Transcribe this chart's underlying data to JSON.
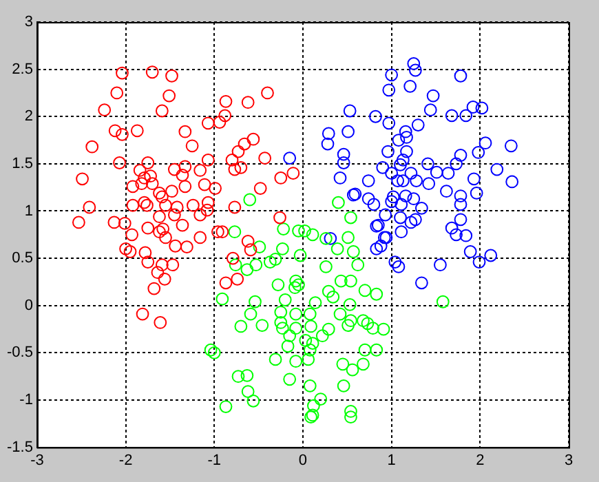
{
  "chart_data": {
    "type": "scatter",
    "xlim": [
      -3,
      3
    ],
    "ylim": [
      -1.5,
      3
    ],
    "xticks": [
      -3,
      -2,
      -1,
      0,
      1,
      2,
      3
    ],
    "yticks": [
      -1.5,
      -1,
      -0.5,
      0,
      0.5,
      1,
      1.5,
      2,
      2.5,
      3
    ],
    "grid": true,
    "legend": false,
    "marker": "circle",
    "series": [
      {
        "color": "#ff0000",
        "x": [
          -2.04,
          -1.7,
          -1.48,
          -2.1,
          -1.51,
          -2.24,
          -1.59,
          -0.4,
          -0.87,
          -0.62,
          -0.88,
          -1.07,
          -0.94,
          -2.12,
          -2.04,
          -1.87,
          -1.33,
          -2.38,
          -1.25,
          -0.56,
          -0.66,
          -0.73,
          -0.43,
          -0.8,
          -1.07,
          -2.07,
          -1.75,
          -1.84,
          -1.45,
          -1.33,
          -1.16,
          -0.77,
          -0.7,
          -1.72,
          -1.79,
          -1.36,
          -1.92,
          -1.82,
          -1.7,
          -1.33,
          -1.11,
          -0.99,
          -0.25,
          -0.11,
          -0.48,
          -1.62,
          -1.48,
          -1.59,
          -1.79,
          -1.92,
          -1.76,
          -1.55,
          -1.42,
          -1.24,
          -1.07,
          -1.08,
          -0.77,
          -2.41,
          -2.53,
          -2.13,
          -2.01,
          -1.62,
          -1.45,
          -1.16,
          -0.26,
          -1.93,
          -1.62,
          -1.36,
          -1.16,
          -0.91,
          -1.55,
          -1.75,
          -1.58,
          -1.44,
          -1.31,
          -1.78,
          -1.75,
          -1.59,
          -1.47,
          -1.64,
          -1.56,
          -1.68,
          -1.81,
          -1.61,
          -0.96,
          -0.62,
          -0.59,
          -0.79,
          -0.74,
          -0.87,
          -2.49,
          -2.0,
          -1.95
        ],
        "values": [
          2.46,
          2.47,
          2.43,
          2.25,
          2.22,
          2.07,
          2.06,
          2.25,
          2.16,
          2.15,
          2.01,
          1.93,
          1.94,
          1.85,
          1.81,
          1.85,
          1.84,
          1.68,
          1.69,
          1.76,
          1.71,
          1.63,
          1.56,
          1.54,
          1.54,
          1.51,
          1.51,
          1.43,
          1.44,
          1.47,
          1.43,
          1.44,
          1.46,
          1.37,
          1.35,
          1.38,
          1.26,
          1.29,
          1.29,
          1.26,
          1.28,
          1.24,
          1.35,
          1.4,
          1.24,
          1.19,
          1.21,
          1.15,
          1.09,
          1.06,
          1.06,
          1.06,
          1.04,
          1.06,
          1.09,
          1.01,
          1.04,
          1.04,
          0.88,
          0.88,
          0.87,
          0.94,
          0.96,
          0.96,
          0.93,
          0.75,
          0.78,
          0.85,
          0.72,
          0.78,
          0.72,
          0.82,
          0.81,
          0.63,
          0.62,
          0.56,
          0.46,
          0.43,
          0.43,
          0.35,
          0.28,
          0.18,
          -0.09,
          -0.18,
          0.78,
          0.68,
          0.59,
          0.5,
          0.28,
          0.24,
          1.34,
          0.6,
          0.57
        ]
      },
      {
        "color": "#00ff00",
        "x": [
          -0.6,
          0.4,
          0.54,
          -0.77,
          -0.22,
          -0.05,
          0.02,
          0.11,
          0.26,
          0.51,
          0.39,
          0.57,
          -0.49,
          -0.23,
          -0.03,
          -0.76,
          -0.63,
          -0.53,
          -0.37,
          -0.31,
          0.26,
          0.62,
          0.43,
          0.54,
          -0.28,
          -0.08,
          -0.09,
          -0.05,
          0.29,
          0.34,
          0.7,
          0.83,
          -0.91,
          -0.54,
          -0.2,
          0.14,
          0.53,
          -0.59,
          -0.25,
          -0.08,
          0.08,
          0.42,
          0.54,
          0.68,
          -0.7,
          -0.46,
          -0.25,
          -0.23,
          -0.08,
          0.09,
          0.29,
          0.51,
          0.73,
          0.79,
          0.91,
          0.22,
          -0.15,
          0.03,
          0.11,
          -0.17,
          -1.04,
          -1.0,
          0.08,
          0.7,
          0.83,
          -0.31,
          -0.08,
          0.06,
          0.45,
          0.68,
          0.56,
          -0.73,
          -0.63,
          -0.15,
          0.08,
          0.46,
          -0.62,
          -0.56,
          0.2,
          0.12,
          -0.87,
          0.09,
          0.54,
          0.54,
          0.11,
          1.58
        ],
        "values": [
          1.12,
          1.09,
          0.93,
          0.78,
          0.81,
          0.79,
          0.79,
          0.75,
          0.71,
          0.72,
          0.6,
          0.57,
          0.62,
          0.6,
          0.53,
          0.43,
          0.38,
          0.43,
          0.46,
          0.49,
          0.41,
          0.43,
          0.26,
          0.26,
          0.22,
          0.26,
          0.19,
          0.22,
          0.15,
          0.09,
          0.16,
          0.12,
          0.07,
          0.04,
          0.06,
          0.03,
          0.01,
          -0.09,
          -0.07,
          -0.09,
          -0.09,
          -0.09,
          -0.16,
          -0.16,
          -0.22,
          -0.21,
          -0.18,
          -0.24,
          -0.24,
          -0.22,
          -0.25,
          -0.21,
          -0.19,
          -0.24,
          -0.25,
          -0.32,
          -0.32,
          -0.37,
          -0.4,
          -0.43,
          -0.47,
          -0.5,
          -0.47,
          -0.47,
          -0.47,
          -0.57,
          -0.59,
          -0.57,
          -0.62,
          -0.62,
          -0.68,
          -0.75,
          -0.74,
          -0.78,
          -0.85,
          -0.85,
          -0.91,
          -1.01,
          -0.99,
          -1.06,
          -1.07,
          -1.18,
          -1.12,
          -1.18,
          -1.16,
          0.04
        ]
      },
      {
        "color": "#0000ff",
        "x": [
          1.25,
          1.27,
          1.0,
          1.78,
          0.97,
          1.21,
          1.47,
          1.44,
          1.68,
          1.84,
          1.92,
          2.02,
          0.53,
          0.82,
          0.97,
          1.3,
          0.29,
          0.51,
          1.16,
          1.17,
          1.08,
          0.28,
          2.06,
          2.35,
          1.98,
          1.78,
          0.96,
          1.17,
          0.46,
          1.13,
          0.46,
          1.1,
          0.9,
          1.41,
          1.73,
          2.19,
          1.0,
          1.51,
          1.64,
          1.22,
          0.42,
          0.74,
          1.07,
          1.13,
          1.28,
          1.42,
          1.93,
          2.36,
          0.59,
          1.62,
          1.96,
          1.02,
          1.16,
          0.74,
          0.8,
          1.0,
          1.11,
          1.25,
          1.34,
          1.78,
          1.78,
          0.93,
          1.1,
          1.22,
          1.27,
          1.78,
          0.83,
          1.68,
          1.11,
          0.94,
          1.84,
          -0.15,
          0.57,
          0.85,
          0.92,
          0.83,
          0.88,
          1.04,
          1.08,
          0.31,
          1.89,
          2.12,
          1.99,
          1.55,
          1.73,
          1.34
        ],
        "values": [
          2.56,
          2.49,
          2.44,
          2.43,
          2.28,
          2.32,
          2.22,
          2.07,
          2.01,
          2.01,
          2.1,
          2.09,
          2.06,
          2.0,
          1.93,
          1.91,
          1.82,
          1.84,
          1.84,
          1.78,
          1.75,
          1.71,
          1.72,
          1.69,
          1.62,
          1.59,
          1.63,
          1.63,
          1.6,
          1.54,
          1.51,
          1.49,
          1.46,
          1.5,
          1.5,
          1.44,
          1.4,
          1.41,
          1.4,
          1.4,
          1.35,
          1.32,
          1.32,
          1.32,
          1.32,
          1.29,
          1.34,
          1.31,
          1.18,
          1.21,
          1.19,
          1.15,
          1.16,
          1.13,
          1.07,
          1.1,
          1.07,
          1.13,
          1.03,
          1.16,
          1.07,
          0.96,
          0.93,
          0.88,
          0.91,
          0.91,
          0.84,
          0.82,
          0.78,
          0.72,
          0.74,
          1.56,
          1.17,
          0.85,
          0.72,
          0.6,
          0.63,
          0.46,
          0.41,
          0.71,
          0.57,
          0.53,
          0.46,
          0.43,
          0.75,
          0.24
        ]
      }
    ]
  }
}
